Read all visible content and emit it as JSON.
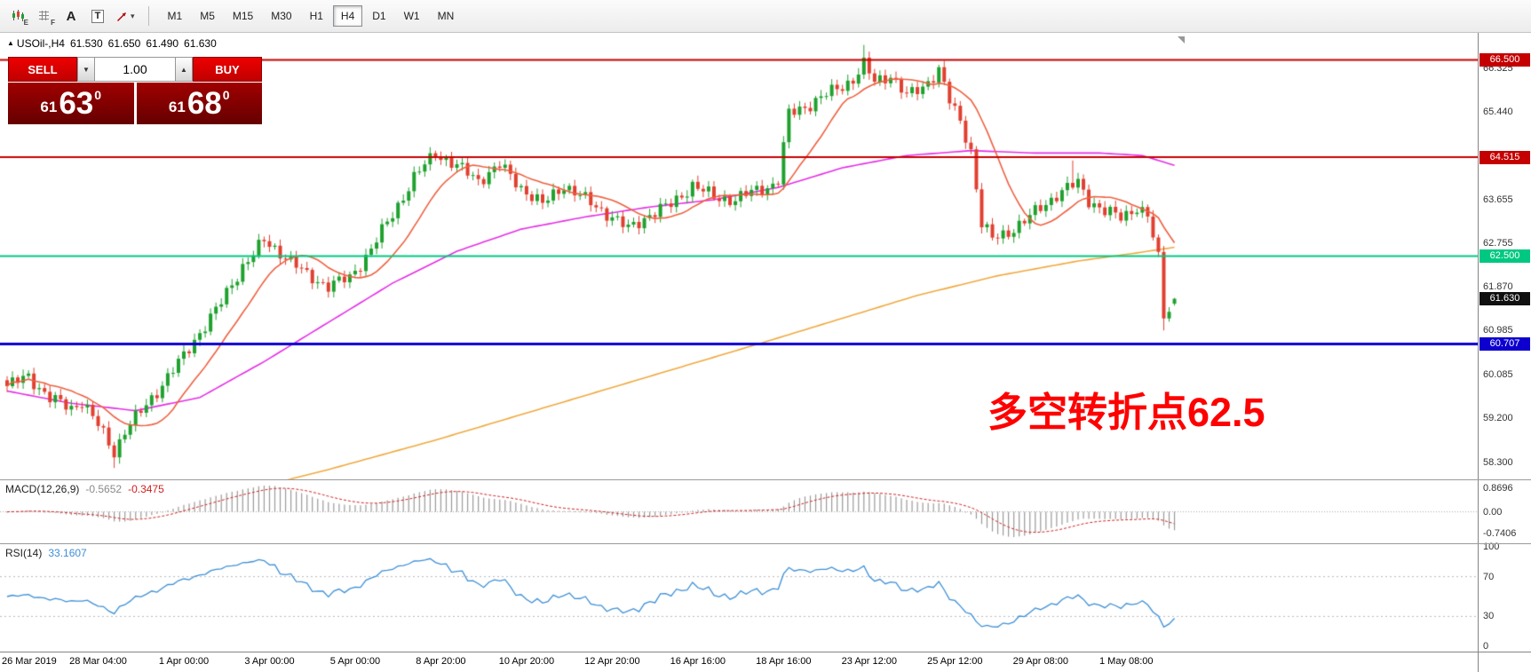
{
  "toolbar": {
    "tool_a": "A",
    "tool_t": "T",
    "icon_sub_e": "E",
    "icon_sub_f": "F",
    "timeframes": [
      "M1",
      "M5",
      "M15",
      "M30",
      "H1",
      "H4",
      "D1",
      "W1",
      "MN"
    ],
    "active_timeframe": "H4"
  },
  "icons": {
    "collapse_arrow": "▲",
    "caret_down": "▼",
    "caret_up": "▲",
    "small_caret": "▾"
  },
  "chart_header": {
    "symbol_label": "USOil-,H4",
    "open": "61.530",
    "high": "61.650",
    "low": "61.490",
    "close": "61.630"
  },
  "trade_panel": {
    "sell_label": "SELL",
    "buy_label": "BUY",
    "volume": "1.00",
    "bid_int": "61",
    "bid_pips": "63",
    "bid_sup": "0",
    "ask_int": "61",
    "ask_pips": "68",
    "ask_sup": "0"
  },
  "annotation": {
    "text": "多空转折点62.5",
    "color": "#fe0000"
  },
  "indicators": {
    "macd": {
      "label": "MACD(12,26,9)",
      "value_main": "-0.5652",
      "value_signal": "-0.3475",
      "axis": [
        "0.8696",
        "0.00",
        "-0.7406"
      ]
    },
    "rsi": {
      "label": "RSI(14)",
      "value": "33.1607",
      "axis": [
        {
          "text": "100",
          "v": 100
        },
        {
          "text": "70",
          "v": 70
        },
        {
          "text": "30",
          "v": 30
        },
        {
          "text": "0",
          "v": 0
        }
      ],
      "levels": [
        70,
        30
      ]
    }
  },
  "price_axis": {
    "scale_labels": [
      {
        "text": "66.325",
        "price": 66.325
      },
      {
        "text": "65.440",
        "price": 65.44
      },
      {
        "text": "63.655",
        "price": 63.655
      },
      {
        "text": "62.755",
        "price": 62.755
      },
      {
        "text": "61.870",
        "price": 61.87
      },
      {
        "text": "60.985",
        "price": 60.985
      },
      {
        "text": "60.085",
        "price": 60.085
      },
      {
        "text": "59.200",
        "price": 59.2
      },
      {
        "text": "58.300",
        "price": 58.3
      }
    ],
    "badges": [
      {
        "text": "66.500",
        "price": 66.5,
        "bg": "#c40000"
      },
      {
        "text": "64.515",
        "price": 64.515,
        "bg": "#c40000"
      },
      {
        "text": "62.500",
        "price": 62.5,
        "bg": "#00c882"
      },
      {
        "text": "61.630",
        "price": 61.63,
        "bg": "#101010"
      },
      {
        "text": "60.707",
        "price": 60.707,
        "bg": "#0d00cf"
      }
    ]
  },
  "hlines": [
    {
      "price": 66.5,
      "color": "#c40000",
      "w": 2
    },
    {
      "price": 64.515,
      "color": "#c40000",
      "w": 2
    },
    {
      "price": 62.5,
      "color": "#00c882",
      "w": 2
    },
    {
      "price": 60.707,
      "color": "#0d00cf",
      "w": 3
    }
  ],
  "time_axis": {
    "labels": [
      "26 Mar 2019",
      "28 Mar 04:00",
      "1 Apr 00:00",
      "3 Apr 00:00",
      "5 Apr 00:00",
      "8 Apr 20:00",
      "10 Apr 20:00",
      "12 Apr 20:00",
      "16 Apr 16:00",
      "18 Apr 16:00",
      "23 Apr 12:00",
      "25 Apr 12:00",
      "29 Apr 08:00",
      "1 May 08:00"
    ],
    "first_index": 1,
    "step": 16
  },
  "chart_data": {
    "type": "candlestick",
    "symbol": "USOil-",
    "timeframe": "H4",
    "count": 219,
    "ylim": [
      57.95,
      67.05
    ],
    "up_color": "#1fa12e",
    "down_color": "#e04030",
    "ma_fast": {
      "period": 12,
      "color": "#ee6040"
    },
    "ma_mid_color": "#e52ee5",
    "ma_slow_color": "#efa93f",
    "macd_bar_color": "#9a9a9a",
    "macd_signal_color": "#d02020",
    "rsi_color": "#3d8fd6",
    "price_keypoints": [
      [
        0,
        59.85
      ],
      [
        4,
        60.05
      ],
      [
        8,
        59.6
      ],
      [
        12,
        59.4
      ],
      [
        14,
        59.55
      ],
      [
        17,
        59.05
      ],
      [
        20,
        58.5
      ],
      [
        22,
        58.95
      ],
      [
        26,
        59.45
      ],
      [
        30,
        60.05
      ],
      [
        33,
        60.45
      ],
      [
        36,
        60.95
      ],
      [
        40,
        61.55
      ],
      [
        44,
        62.3
      ],
      [
        48,
        62.8
      ],
      [
        52,
        62.5
      ],
      [
        56,
        62.1
      ],
      [
        60,
        61.9
      ],
      [
        64,
        62.05
      ],
      [
        68,
        62.65
      ],
      [
        72,
        63.35
      ],
      [
        76,
        64.1
      ],
      [
        80,
        64.6
      ],
      [
        83,
        64.4
      ],
      [
        88,
        64.05
      ],
      [
        92,
        64.35
      ],
      [
        96,
        63.9
      ],
      [
        100,
        63.55
      ],
      [
        104,
        63.95
      ],
      [
        108,
        63.65
      ],
      [
        113,
        63.3
      ],
      [
        116,
        63.05
      ],
      [
        120,
        63.35
      ],
      [
        124,
        63.55
      ],
      [
        128,
        63.95
      ],
      [
        132,
        63.7
      ],
      [
        136,
        63.65
      ],
      [
        140,
        63.85
      ],
      [
        143,
        63.95
      ],
      [
        144,
        64.05
      ],
      [
        146,
        65.4
      ],
      [
        150,
        65.6
      ],
      [
        154,
        65.85
      ],
      [
        158,
        66.1
      ],
      [
        160,
        66.4
      ],
      [
        162,
        66.05
      ],
      [
        165,
        66.2
      ],
      [
        168,
        65.75
      ],
      [
        171,
        65.95
      ],
      [
        174,
        66.3
      ],
      [
        176,
        65.65
      ],
      [
        178,
        65.25
      ],
      [
        180,
        64.65
      ],
      [
        182,
        63.15
      ],
      [
        184,
        62.85
      ],
      [
        187,
        63.0
      ],
      [
        190,
        63.2
      ],
      [
        193,
        63.5
      ],
      [
        196,
        63.75
      ],
      [
        200,
        64.0
      ],
      [
        202,
        63.65
      ],
      [
        205,
        63.4
      ],
      [
        208,
        63.3
      ],
      [
        211,
        63.5
      ],
      [
        213,
        63.3
      ],
      [
        215,
        62.45
      ],
      [
        216,
        61.3
      ],
      [
        217,
        61.45
      ],
      [
        218,
        61.63
      ]
    ],
    "ma_mid_keypoints": [
      [
        0,
        59.75
      ],
      [
        12,
        59.5
      ],
      [
        24,
        59.35
      ],
      [
        36,
        59.62
      ],
      [
        48,
        60.35
      ],
      [
        60,
        61.15
      ],
      [
        72,
        61.95
      ],
      [
        84,
        62.6
      ],
      [
        96,
        63.05
      ],
      [
        108,
        63.3
      ],
      [
        120,
        63.5
      ],
      [
        132,
        63.65
      ],
      [
        144,
        63.9
      ],
      [
        156,
        64.3
      ],
      [
        168,
        64.55
      ],
      [
        180,
        64.65
      ],
      [
        192,
        64.6
      ],
      [
        204,
        64.6
      ],
      [
        212,
        64.55
      ],
      [
        218,
        64.35
      ]
    ],
    "ma_slow_keypoints": [
      [
        40,
        57.6
      ],
      [
        60,
        58.15
      ],
      [
        80,
        58.75
      ],
      [
        100,
        59.4
      ],
      [
        120,
        60.05
      ],
      [
        140,
        60.7
      ],
      [
        155,
        61.2
      ],
      [
        170,
        61.7
      ],
      [
        185,
        62.1
      ],
      [
        200,
        62.4
      ],
      [
        210,
        62.55
      ],
      [
        218,
        62.68
      ]
    ],
    "final_candle": {
      "o": 61.53,
      "h": 61.65,
      "l": 61.49,
      "c": 61.63
    },
    "extra_wicks": [
      {
        "i": 20,
        "low": 0.12
      },
      {
        "i": 160,
        "high": 0.2
      },
      {
        "i": 199,
        "high": 0.4
      }
    ],
    "low_floor": {
      "i": 216,
      "value": 60.985
    }
  }
}
